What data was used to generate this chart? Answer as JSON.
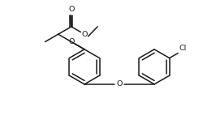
{
  "background": "#ffffff",
  "line_color": "#1a1a1a",
  "line_width": 1.1,
  "font_size": 6.8,
  "figsize": [
    2.51,
    1.48
  ],
  "dpi": 100,
  "xlim": [
    -1.0,
    9.5
  ],
  "ylim": [
    -0.5,
    5.5
  ]
}
